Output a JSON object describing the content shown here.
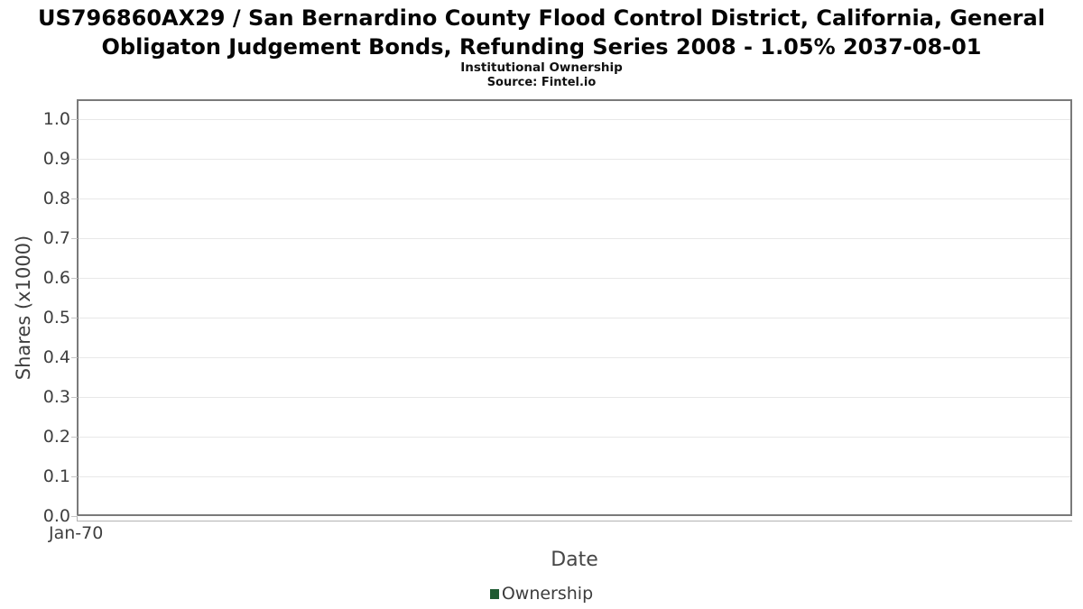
{
  "header": {
    "title": "US796860AX29 / San Bernardino County Flood Control District, California, General Obligaton Judgement Bonds, Refunding Series 2008 - 1.05% 2037-08-01",
    "subtitle": "Institutional Ownership",
    "source": "Source: Fintel.io"
  },
  "legend": {
    "label": "Ownership",
    "color": "#1E5B32"
  },
  "chart_data": {
    "type": "line",
    "title": "US796860AX29 / San Bernardino County Flood Control District, California, General Obligaton Judgement Bonds, Refunding Series 2008 - 1.05% 2037-08-01",
    "subtitle": "Institutional Ownership",
    "source": "Source: Fintel.io",
    "xlabel": "Date",
    "ylabel": "Shares (x1000)",
    "x_ticks": [
      "Jan-70"
    ],
    "y_ticks": [
      "1.0",
      "0.9",
      "0.8",
      "0.7",
      "0.6",
      "0.5",
      "0.4",
      "0.3",
      "0.2",
      "0.1",
      "0.0"
    ],
    "ylim": [
      0.0,
      1.05
    ],
    "grid": "horizontal",
    "legend_position": "bottom-center",
    "series": [
      {
        "name": "Ownership",
        "color": "#1E5B32",
        "x": [],
        "values": []
      }
    ]
  }
}
